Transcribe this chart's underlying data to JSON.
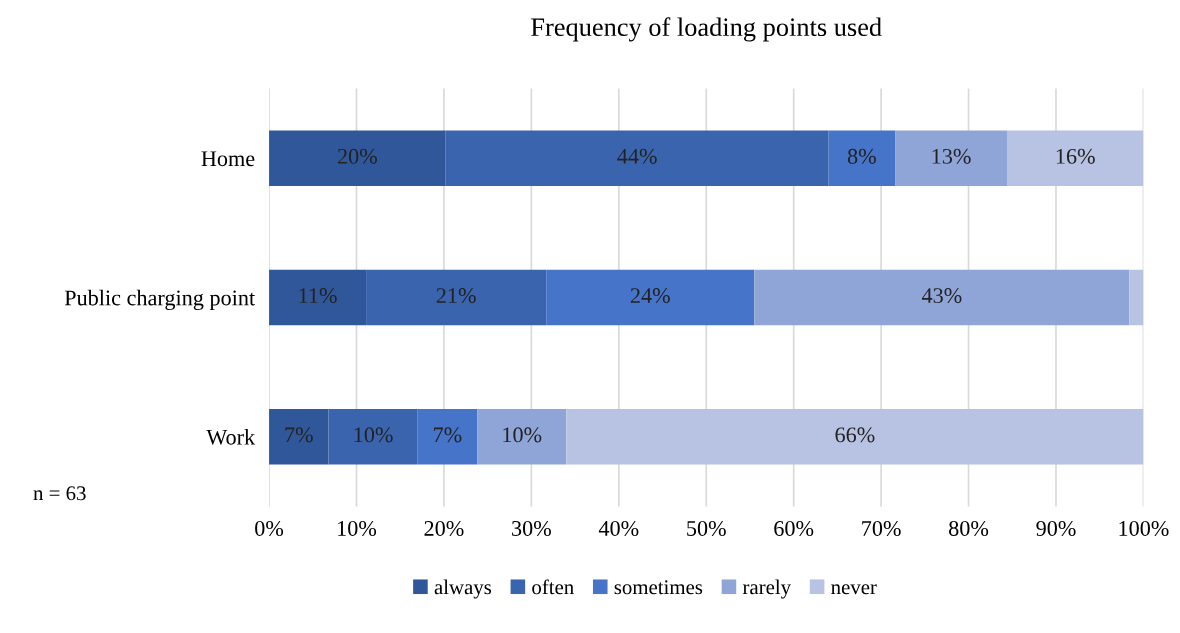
{
  "chart_data": {
    "type": "bar",
    "orientation": "horizontal",
    "stacked": true,
    "title": "Frequency of loading points used",
    "categories": [
      "Home",
      "Public charging point",
      "Work"
    ],
    "series": [
      {
        "name": "always",
        "color": "#30579a",
        "values": [
          20.2,
          11.1,
          6.8
        ],
        "value_labels": [
          "20%",
          "11%",
          "7%"
        ]
      },
      {
        "name": "often",
        "color": "#3b64ae",
        "values": [
          43.8,
          20.6,
          10.2
        ],
        "value_labels": [
          "44%",
          "21%",
          "10%"
        ]
      },
      {
        "name": "sometimes",
        "color": "#4674c8",
        "values": [
          7.6,
          23.8,
          6.8
        ],
        "value_labels": [
          "8%",
          "24%",
          "7%"
        ]
      },
      {
        "name": "rarely",
        "color": "#8fa5d8",
        "values": [
          12.8,
          42.9,
          10.2
        ],
        "value_labels": [
          "13%",
          "43%",
          "10%"
        ]
      },
      {
        "name": "never",
        "color": "#b8c2e2",
        "values": [
          15.6,
          1.6,
          66.0
        ],
        "value_labels": [
          "16%",
          null,
          "66%"
        ]
      }
    ],
    "xlim": [
      0,
      100
    ],
    "xticks": [
      {
        "value": 0,
        "label": "0%"
      },
      {
        "value": 10,
        "label": "10%"
      },
      {
        "value": 20,
        "label": "20%"
      },
      {
        "value": 30,
        "label": "30%"
      },
      {
        "value": 40,
        "label": "40%"
      },
      {
        "value": 50,
        "label": "50%"
      },
      {
        "value": 60,
        "label": "60%"
      },
      {
        "value": 70,
        "label": "70%"
      },
      {
        "value": 80,
        "label": "80%"
      },
      {
        "value": 90,
        "label": "90%"
      },
      {
        "value": 100,
        "label": "100%"
      }
    ],
    "grid": "x",
    "legend": "bottom",
    "annotations": [
      "n = 63"
    ]
  }
}
